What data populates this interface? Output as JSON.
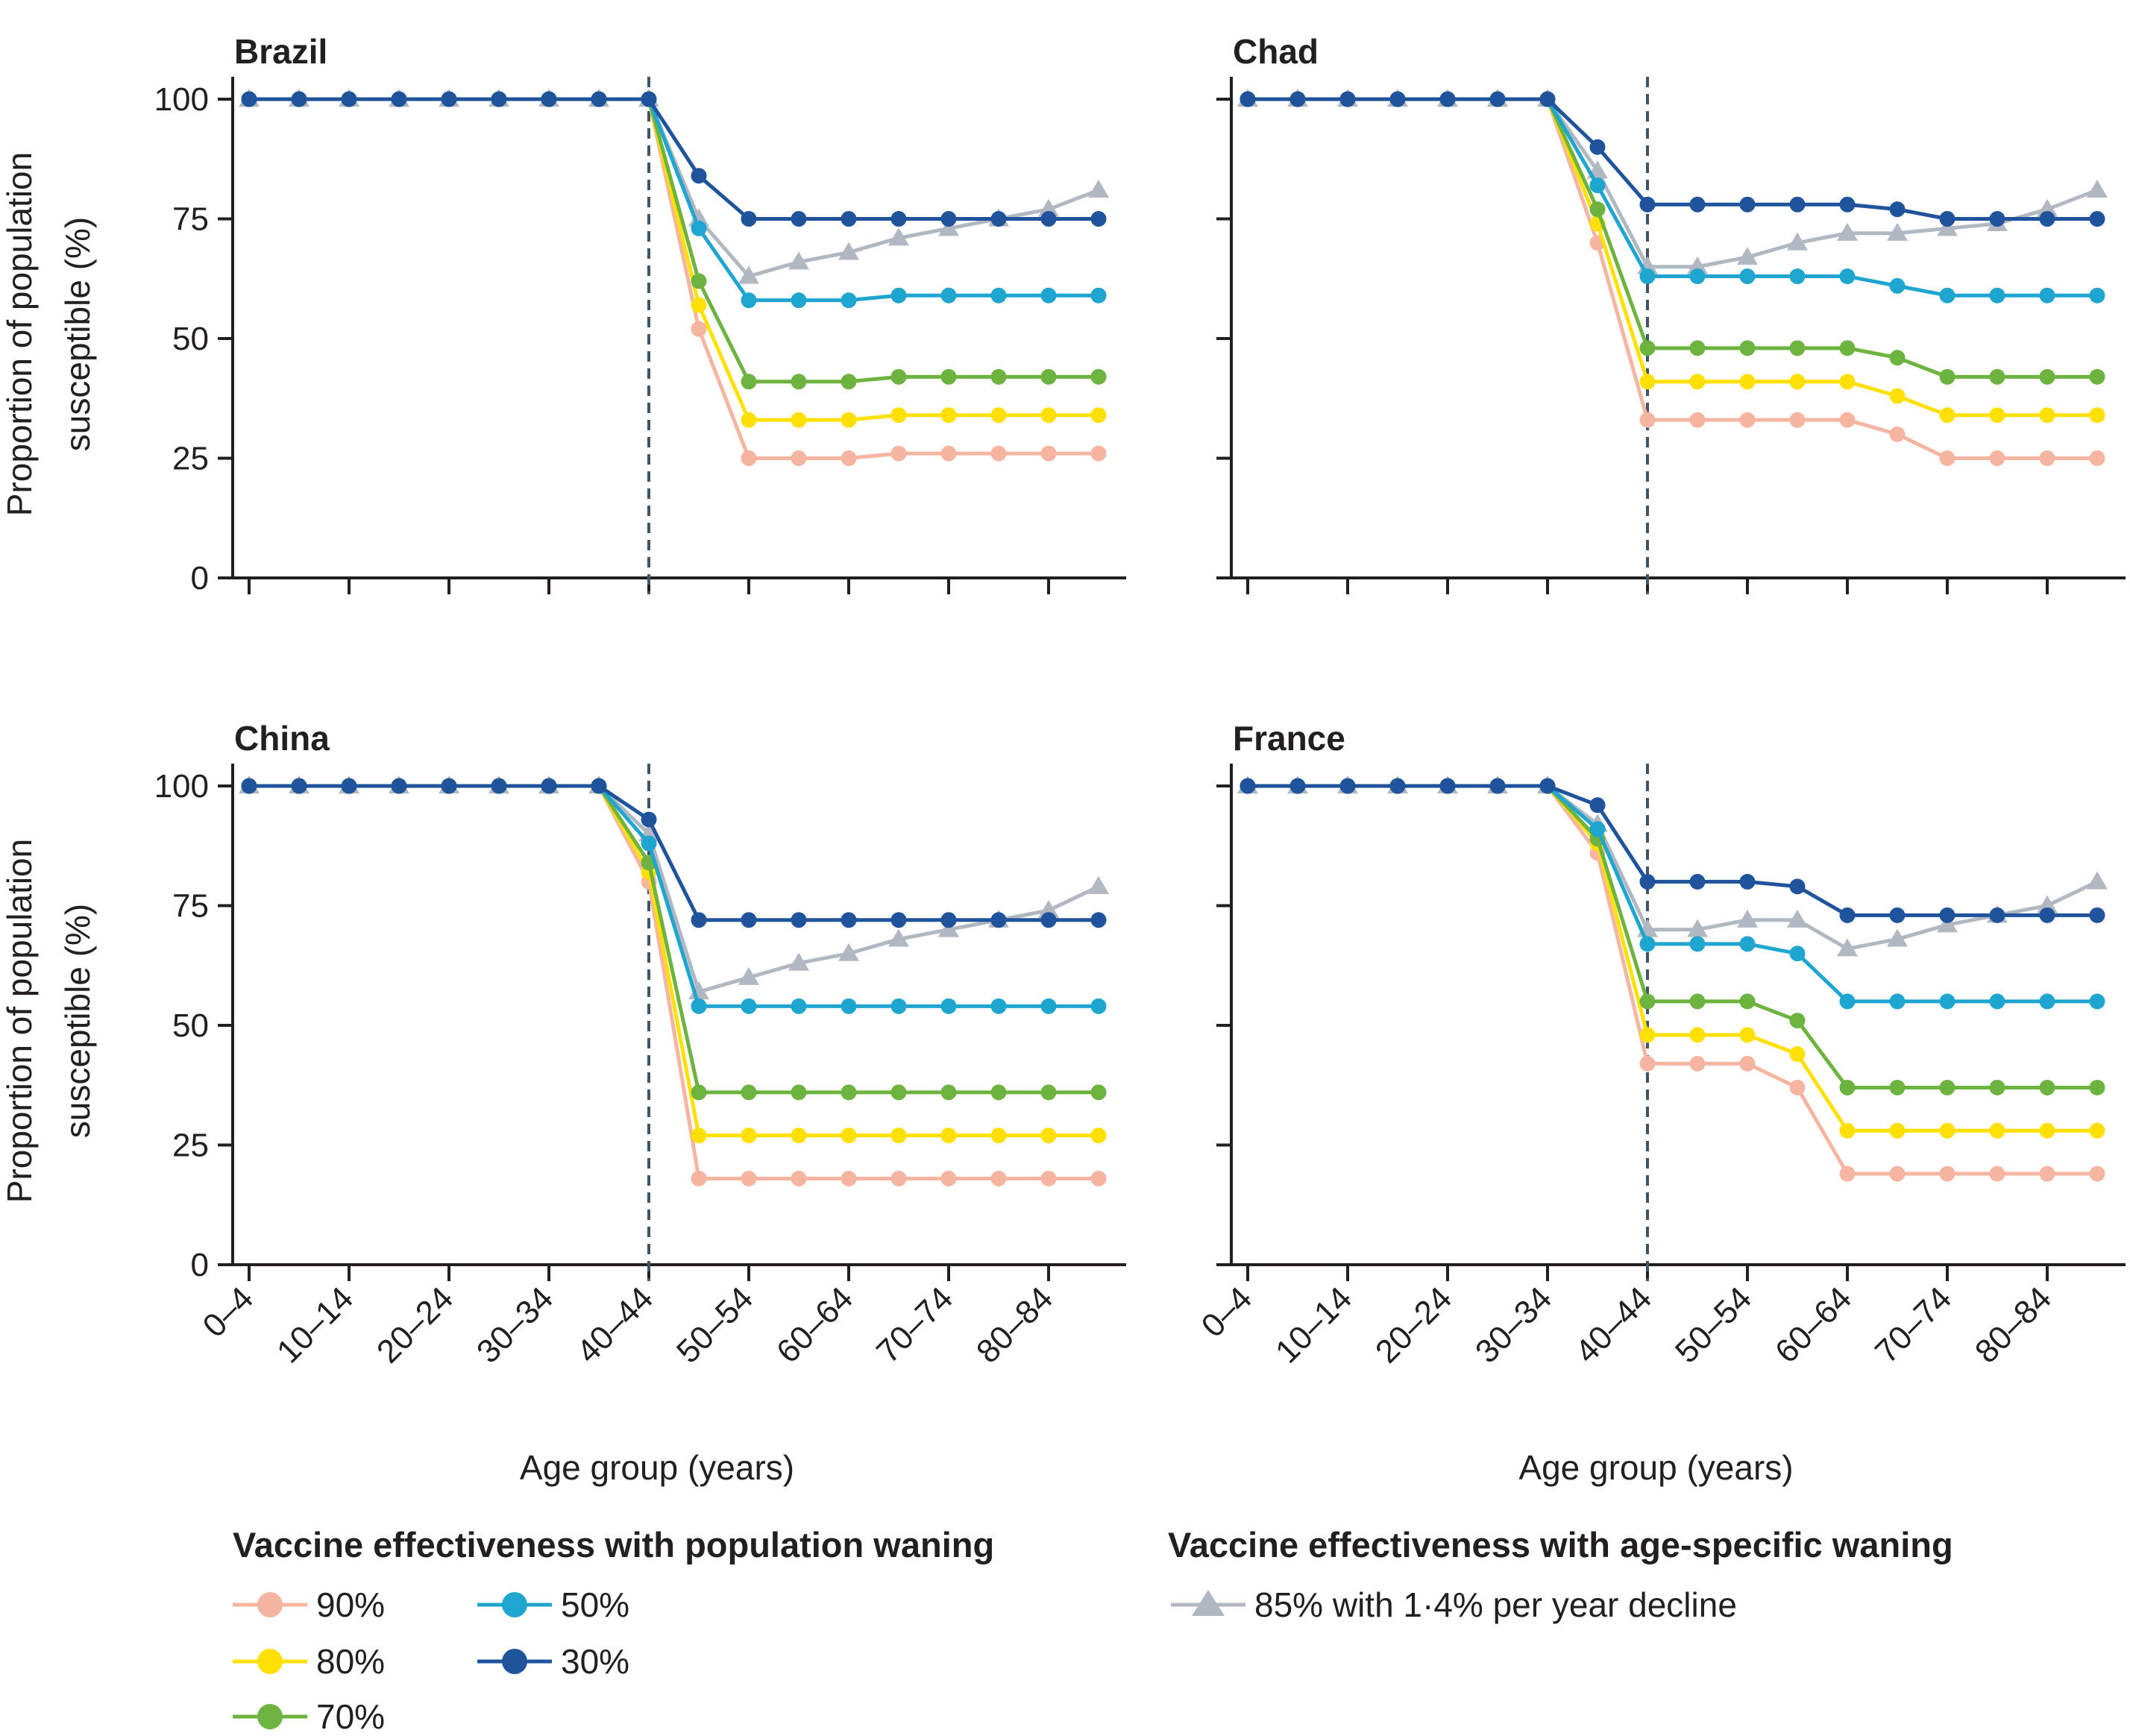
{
  "chart_data": {
    "type": "line",
    "ylabel_line1": "Proportion of population",
    "ylabel_line2": "susceptible (%)",
    "xlabel": "Age group (years)",
    "ylim": [
      0,
      100
    ],
    "yticks": [
      0,
      25,
      50,
      75,
      100
    ],
    "x_tick_labels": [
      "0–4",
      "10–14",
      "20–24",
      "30–34",
      "40–44",
      "50–54",
      "60–64",
      "70–74",
      "80–84"
    ],
    "age_groups": [
      "0–4",
      "5–9",
      "10–14",
      "15–19",
      "20–24",
      "25–29",
      "30–34",
      "35–39",
      "40–44",
      "45–49",
      "50–54",
      "55–59",
      "60–64",
      "65–69",
      "70–74",
      "75–79",
      "80–84",
      "85+"
    ],
    "reference_line_at": "40–44",
    "legend": {
      "title_left": "Vaccine effectiveness with population waning",
      "title_right": "Vaccine effectiveness with age-specific waning"
    },
    "series_style": [
      {
        "name": "90%",
        "color": "#f5b5a0",
        "marker": "circle"
      },
      {
        "name": "80%",
        "color": "#ffe000",
        "marker": "circle"
      },
      {
        "name": "70%",
        "color": "#6db33f",
        "marker": "circle"
      },
      {
        "name": "50%",
        "color": "#1ea5d0",
        "marker": "circle"
      },
      {
        "name": "30%",
        "color": "#1f539b",
        "marker": "circle"
      },
      {
        "name": "85% with 1·4% per year decline",
        "color": "#b1b8c2",
        "marker": "triangle"
      }
    ],
    "panels": [
      {
        "title": "Brazil",
        "series": [
          {
            "name": "90%",
            "x_start": "0–4",
            "values": [
              100,
              100,
              100,
              100,
              100,
              100,
              100,
              100,
              100,
              52,
              25,
              25,
              25,
              26,
              26,
              26,
              26,
              26
            ]
          },
          {
            "name": "80%",
            "x_start": "0–4",
            "values": [
              100,
              100,
              100,
              100,
              100,
              100,
              100,
              100,
              100,
              57,
              33,
              33,
              33,
              34,
              34,
              34,
              34,
              34
            ]
          },
          {
            "name": "70%",
            "x_start": "0–4",
            "values": [
              100,
              100,
              100,
              100,
              100,
              100,
              100,
              100,
              100,
              62,
              41,
              41,
              41,
              42,
              42,
              42,
              42,
              42
            ]
          },
          {
            "name": "50%",
            "x_start": "0–4",
            "values": [
              100,
              100,
              100,
              100,
              100,
              100,
              100,
              100,
              100,
              73,
              58,
              58,
              58,
              59,
              59,
              59,
              59,
              59
            ]
          },
          {
            "name": "30%",
            "x_start": "0–4",
            "values": [
              100,
              100,
              100,
              100,
              100,
              100,
              100,
              100,
              100,
              84,
              75,
              75,
              75,
              75,
              75,
              75,
              75,
              75
            ]
          },
          {
            "name": "85% with 1·4% per year decline",
            "x_start": "0–4",
            "values": [
              100,
              100,
              100,
              100,
              100,
              100,
              100,
              100,
              100,
              75,
              63,
              66,
              68,
              71,
              73,
              75,
              77,
              81
            ]
          }
        ]
      },
      {
        "title": "Chad",
        "series": [
          {
            "name": "90%",
            "x_start": "0–4",
            "values": [
              100,
              100,
              100,
              100,
              100,
              100,
              100,
              70,
              33,
              33,
              33,
              33,
              33,
              30,
              25,
              25,
              25,
              25
            ]
          },
          {
            "name": "80%",
            "x_start": "0–4",
            "values": [
              100,
              100,
              100,
              100,
              100,
              100,
              100,
              74,
              41,
              41,
              41,
              41,
              41,
              38,
              34,
              34,
              34,
              34
            ]
          },
          {
            "name": "70%",
            "x_start": "0–4",
            "values": [
              100,
              100,
              100,
              100,
              100,
              100,
              100,
              77,
              48,
              48,
              48,
              48,
              48,
              46,
              42,
              42,
              42,
              42
            ]
          },
          {
            "name": "50%",
            "x_start": "0–4",
            "values": [
              100,
              100,
              100,
              100,
              100,
              100,
              100,
              82,
              63,
              63,
              63,
              63,
              63,
              61,
              59,
              59,
              59,
              59
            ]
          },
          {
            "name": "30%",
            "x_start": "0–4",
            "values": [
              100,
              100,
              100,
              100,
              100,
              100,
              100,
              90,
              78,
              78,
              78,
              78,
              78,
              77,
              75,
              75,
              75,
              75
            ]
          },
          {
            "name": "85% with 1·4% per year decline",
            "x_start": "0–4",
            "values": [
              100,
              100,
              100,
              100,
              100,
              100,
              100,
              85,
              65,
              65,
              67,
              70,
              72,
              72,
              73,
              74,
              77,
              81
            ]
          }
        ]
      },
      {
        "title": "China",
        "series": [
          {
            "name": "90%",
            "x_start": "0–4",
            "values": [
              100,
              100,
              100,
              100,
              100,
              100,
              100,
              100,
              80,
              18,
              18,
              18,
              18,
              18,
              18,
              18,
              18,
              18
            ]
          },
          {
            "name": "80%",
            "x_start": "0–4",
            "values": [
              100,
              100,
              100,
              100,
              100,
              100,
              100,
              100,
              82,
              27,
              27,
              27,
              27,
              27,
              27,
              27,
              27,
              27
            ]
          },
          {
            "name": "70%",
            "x_start": "0–4",
            "values": [
              100,
              100,
              100,
              100,
              100,
              100,
              100,
              100,
              84,
              36,
              36,
              36,
              36,
              36,
              36,
              36,
              36,
              36
            ]
          },
          {
            "name": "50%",
            "x_start": "0–4",
            "values": [
              100,
              100,
              100,
              100,
              100,
              100,
              100,
              100,
              88,
              54,
              54,
              54,
              54,
              54,
              54,
              54,
              54,
              54
            ]
          },
          {
            "name": "30%",
            "x_start": "0–4",
            "values": [
              100,
              100,
              100,
              100,
              100,
              100,
              100,
              100,
              93,
              72,
              72,
              72,
              72,
              72,
              72,
              72,
              72,
              72
            ]
          },
          {
            "name": "85% with 1·4% per year decline",
            "x_start": "0–4",
            "values": [
              100,
              100,
              100,
              100,
              100,
              100,
              100,
              100,
              90,
              57,
              60,
              63,
              65,
              68,
              70,
              72,
              74,
              79
            ]
          }
        ]
      },
      {
        "title": "France",
        "series": [
          {
            "name": "90%",
            "x_start": "0–4",
            "values": [
              100,
              100,
              100,
              100,
              100,
              100,
              100,
              86,
              42,
              42,
              42,
              37,
              19,
              19,
              19,
              19,
              19,
              19
            ]
          },
          {
            "name": "80%",
            "x_start": "0–4",
            "values": [
              100,
              100,
              100,
              100,
              100,
              100,
              100,
              88,
              48,
              48,
              48,
              44,
              28,
              28,
              28,
              28,
              28,
              28
            ]
          },
          {
            "name": "70%",
            "x_start": "0–4",
            "values": [
              100,
              100,
              100,
              100,
              100,
              100,
              100,
              89,
              55,
              55,
              55,
              51,
              37,
              37,
              37,
              37,
              37,
              37
            ]
          },
          {
            "name": "50%",
            "x_start": "0–4",
            "values": [
              100,
              100,
              100,
              100,
              100,
              100,
              100,
              91,
              67,
              67,
              67,
              65,
              55,
              55,
              55,
              55,
              55,
              55
            ]
          },
          {
            "name": "30%",
            "x_start": "0–4",
            "values": [
              100,
              100,
              100,
              100,
              100,
              100,
              100,
              96,
              80,
              80,
              80,
              79,
              73,
              73,
              73,
              73,
              73,
              73
            ]
          },
          {
            "name": "85% with 1·4% per year decline",
            "x_start": "0–4",
            "values": [
              100,
              100,
              100,
              100,
              100,
              100,
              100,
              92,
              70,
              70,
              72,
              72,
              66,
              68,
              71,
              73,
              75,
              80
            ]
          }
        ]
      }
    ]
  }
}
